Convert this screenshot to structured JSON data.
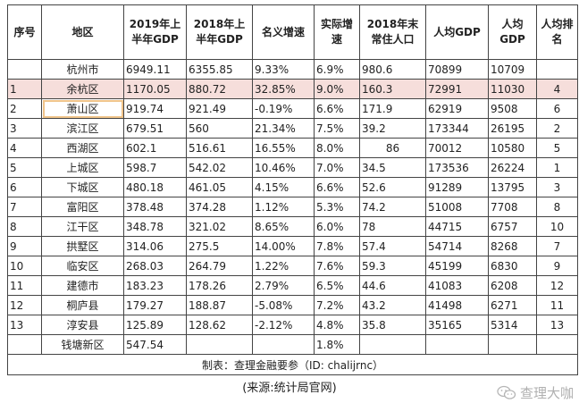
{
  "headers": [
    "序号",
    "地区",
    "2019年上半年GDP",
    "2018年上半年GDP",
    "名义增速",
    "实际增速",
    "2018年末常住人口",
    "人均GDP",
    "人均GDP",
    "人均排名"
  ],
  "rows": [
    {
      "idx": "",
      "name": "杭州市",
      "g2019": "6949.11",
      "g2018": "6355.85",
      "nominal": "9.33%",
      "real": "6.9%",
      "pop": "980.6",
      "pc_a": "70899",
      "pc_b": "10709",
      "rank": ""
    },
    {
      "idx": "1",
      "name": "余杭区",
      "g2019": "1170.05",
      "g2018": "880.72",
      "nominal": "32.85%",
      "real": "9.0%",
      "pop": "160.3",
      "pc_a": "72991",
      "pc_b": "11030",
      "rank": "4"
    },
    {
      "idx": "2",
      "name": "萧山区",
      "g2019": "919.74",
      "g2018": "921.49",
      "nominal": "-0.19%",
      "real": "6.6%",
      "pop": "171.9",
      "pc_a": "62919",
      "pc_b": "9508",
      "rank": "6"
    },
    {
      "idx": "3",
      "name": "滨江区",
      "g2019": "679.51",
      "g2018": "560",
      "nominal": "21.34%",
      "real": "7.5%",
      "pop": "39.2",
      "pc_a": "173344",
      "pc_b": "26195",
      "rank": "2"
    },
    {
      "idx": "4",
      "name": "西湖区",
      "g2019": "602.1",
      "g2018": "516.61",
      "nominal": "16.55%",
      "real": "8.0%",
      "pop": "86",
      "pc_a": "70012",
      "pc_b": "10580",
      "rank": "5"
    },
    {
      "idx": "5",
      "name": "上城区",
      "g2019": "598.7",
      "g2018": "542.02",
      "nominal": "10.46%",
      "real": "7.0%",
      "pop": "34.5",
      "pc_a": "173536",
      "pc_b": "26224",
      "rank": "1"
    },
    {
      "idx": "6",
      "name": "下城区",
      "g2019": "480.18",
      "g2018": "461.05",
      "nominal": "4.15%",
      "real": "6.6%",
      "pop": "52.6",
      "pc_a": "91289",
      "pc_b": "13795",
      "rank": "3"
    },
    {
      "idx": "7",
      "name": "富阳区",
      "g2019": "378.48",
      "g2018": "374.28",
      "nominal": "1.12%",
      "real": "5.3%",
      "pop": "74.2",
      "pc_a": "51008",
      "pc_b": "7708",
      "rank": "8"
    },
    {
      "idx": "8",
      "name": "江干区",
      "g2019": "348.78",
      "g2018": "321.02",
      "nominal": "8.65%",
      "real": "6.0%",
      "pop": "78",
      "pc_a": "44715",
      "pc_b": "6757",
      "rank": "10"
    },
    {
      "idx": "9",
      "name": "拱墅区",
      "g2019": "314.06",
      "g2018": "275.5",
      "nominal": "14.00%",
      "real": "7.8%",
      "pop": "57.4",
      "pc_a": "54714",
      "pc_b": "8268",
      "rank": "7"
    },
    {
      "idx": "10",
      "name": "临安区",
      "g2019": "268.03",
      "g2018": "264.79",
      "nominal": "1.22%",
      "real": "7.6%",
      "pop": "59.3",
      "pc_a": "45199",
      "pc_b": "6830",
      "rank": "9"
    },
    {
      "idx": "11",
      "name": "建德市",
      "g2019": "183.23",
      "g2018": "178.26",
      "nominal": "2.79%",
      "real": "6.5%",
      "pop": "44.6",
      "pc_a": "41083",
      "pc_b": "6208",
      "rank": "12"
    },
    {
      "idx": "12",
      "name": "桐庐县",
      "g2019": "179.27",
      "g2018": "188.87",
      "nominal": "-5.08%",
      "real": "7.2%",
      "pop": "43.2",
      "pc_a": "41498",
      "pc_b": "6271",
      "rank": "11"
    },
    {
      "idx": "13",
      "name": "淳安县",
      "g2019": "125.89",
      "g2018": "128.62",
      "nominal": "-2.12%",
      "real": "4.8%",
      "pop": "35.8",
      "pc_a": "35165",
      "pc_b": "5314",
      "rank": "13"
    },
    {
      "idx": "",
      "name": "钱塘新区",
      "g2019": "547.54",
      "g2018": "",
      "nominal": "",
      "real": "1.8%",
      "pop": "",
      "pc_a": "",
      "pc_b": "",
      "rank": ""
    }
  ],
  "credit": "制表：查理金融要参（ID: chalijrnc）",
  "source": "(来源:统计局官网)",
  "watermark": "查理大咖",
  "colors": {
    "pink_row": "#f6dedb",
    "name_outline": "#f0c48a"
  },
  "icons": {
    "watermark": "wechat-bubble-icon"
  }
}
